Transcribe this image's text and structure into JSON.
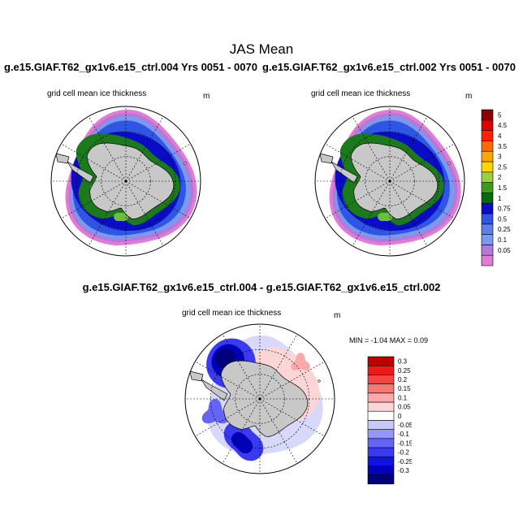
{
  "page_title": "JAS Mean",
  "runs": {
    "left_title": "g.e15.GIAF.T62_gx1v6.e15_ctrl.004  Yrs 0051 - 0070",
    "right_title": "g.e15.GIAF.T62_gx1v6.e15_ctrl.002  Yrs 0051 - 0070"
  },
  "diff_title": "g.e15.GIAF.T62_gx1v6.e15_ctrl.004 - g.e15.GIAF.T62_gx1v6.e15_ctrl.002",
  "panels": {
    "left": {
      "subtitle": "grid cell mean ice thickness",
      "unit": "m"
    },
    "right": {
      "subtitle": "grid cell mean ice thickness",
      "unit": "m"
    },
    "diff": {
      "subtitle": "grid cell mean ice thickness",
      "unit": "m"
    }
  },
  "diff_stats": "MIN =  -1.04 MAX =   0.09",
  "colors": {
    "land": "#c8c8c8",
    "ice_colorbar": [
      "#e37ad8",
      "#b479d6",
      "#7a9af0",
      "#5e7ee8",
      "#2f55e3",
      "#0a0cc6",
      "#0a6a12",
      "#3e9b1e",
      "#9ccf3c",
      "#ffd700",
      "#ffa500",
      "#ff6a00",
      "#ff2200",
      "#e00000",
      "#8b0000"
    ],
    "diff_colorbar": [
      "#00007a",
      "#0000b8",
      "#1212e0",
      "#3a3af0",
      "#6464f5",
      "#9696f8",
      "#c8c8fb",
      "#ffffff",
      "#fcd6d6",
      "#f9a9a9",
      "#f77777",
      "#f44444",
      "#ec1a1a",
      "#c00000",
      "#8b0000"
    ]
  },
  "chart_data": [
    {
      "type": "heatmap",
      "title": "grid cell mean ice thickness",
      "run": "g.e15.GIAF.T62_gx1v6.e15_ctrl.004  Yrs 0051 - 0070",
      "projection": "south polar stereographic",
      "units": "m",
      "colorbar_levels": [
        "0.05",
        "0.1",
        "0.25",
        "0.5",
        "0.75",
        "1",
        "1.5",
        "2",
        "2.5",
        "3",
        "3.5",
        "4",
        "4.5",
        "5"
      ]
    },
    {
      "type": "heatmap",
      "title": "grid cell mean ice thickness",
      "run": "g.e15.GIAF.T62_gx1v6.e15_ctrl.002  Yrs 0051 - 0070",
      "projection": "south polar stereographic",
      "units": "m",
      "colorbar_levels": [
        "0.05",
        "0.1",
        "0.25",
        "0.5",
        "0.75",
        "1",
        "1.5",
        "2",
        "2.5",
        "3",
        "3.5",
        "4",
        "4.5",
        "5"
      ]
    },
    {
      "type": "heatmap",
      "title": "grid cell mean ice thickness",
      "run": "g.e15.GIAF.T62_gx1v6.e15_ctrl.004 - g.e15.GIAF.T62_gx1v6.e15_ctrl.002",
      "projection": "south polar stereographic",
      "units": "m",
      "min": -1.04,
      "max": 0.09,
      "colorbar_levels": [
        "-0.3",
        "-0.25",
        "-0.2",
        "-0.15",
        "-0.1",
        "-0.05",
        "0",
        "0.05",
        "0.1",
        "0.15",
        "0.2",
        "0.25",
        "0.3"
      ]
    }
  ]
}
